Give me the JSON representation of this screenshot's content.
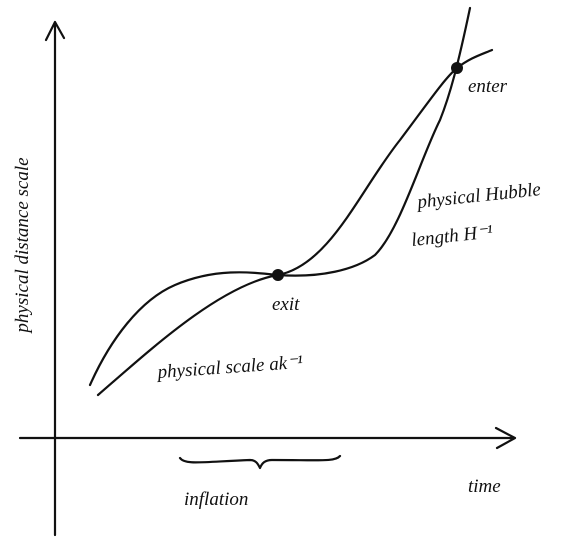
{
  "axes": {
    "y_label": "physical distance scale",
    "x_label": "time"
  },
  "curves": {
    "hubble_line1": "physical Hubble",
    "hubble_line2": "length H⁻¹",
    "scale": "physical scale ak⁻¹"
  },
  "points": {
    "exit": "exit",
    "enter": "enter"
  },
  "brace_label": "inflation"
}
